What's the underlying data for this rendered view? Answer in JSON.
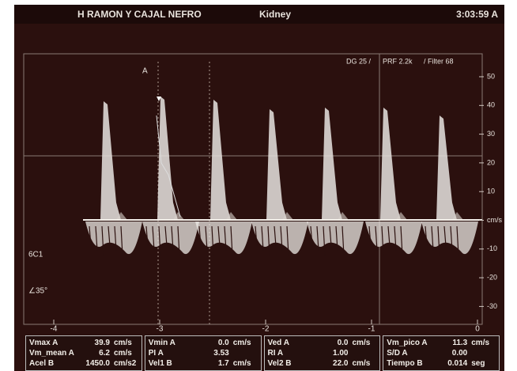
{
  "header": {
    "title": "H RAMON Y CAJAL NEFRO",
    "organ": "Kidney",
    "time": "3:03:59 A"
  },
  "display": {
    "settings": [
      "DG 25 /",
      "PRF 2.2k",
      "/ Filter 68"
    ],
    "cursor_label": "A",
    "probe": "6C1",
    "angle": "∠35°",
    "velocity_scale": [
      "50",
      "40",
      "30",
      "20",
      "10",
      "cm/s",
      "-10",
      "-20",
      "-30"
    ],
    "time_scale": [
      "-4",
      "-3",
      "-2",
      "-1",
      "0"
    ]
  },
  "measurements": [
    [
      [
        "Vmax A",
        "39.9",
        "cm/s"
      ],
      [
        "Vm_mean A",
        "6.2",
        "cm/s"
      ],
      [
        "Acel B",
        "1450.0",
        "cm/s2"
      ]
    ],
    [
      [
        "Vmin A",
        "0.0",
        "cm/s"
      ],
      [
        "PI A",
        "3.53"
      ],
      [
        "Vel1 B",
        "1.7",
        "cm/s"
      ]
    ],
    [
      [
        "Ved A",
        "0.0",
        "cm/s"
      ],
      [
        "RI A",
        "1.00"
      ],
      [
        "Vel2 B",
        "22.0",
        "cm/s"
      ]
    ],
    [
      [
        "Vm_pico A",
        "11.3",
        "cm/s"
      ],
      [
        "S/D A",
        "0.00"
      ],
      [
        "Tiempo B",
        "0.014",
        "seg"
      ]
    ]
  ]
}
